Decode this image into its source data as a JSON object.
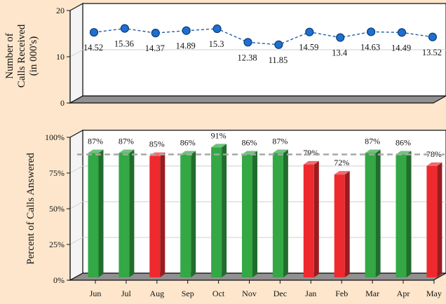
{
  "colors": {
    "background": "#fde6cc",
    "panel": "#ffffff",
    "line": "#1f5fa8",
    "marker": "#1e70d0",
    "bar_met": "#33a845",
    "bar_missed": "#ee2a2f",
    "target_line": "#a8a8a8"
  },
  "chart_data": [
    {
      "type": "line",
      "ylabel": [
        "Number of",
        "Calls Received",
        "(in 000's)"
      ],
      "categories": [
        "Jun",
        "Jul",
        "Aug",
        "Sep",
        "Oct",
        "Nov",
        "Dec",
        "Jan",
        "Feb",
        "Mar",
        "Apr",
        "May"
      ],
      "values": [
        14.52,
        15.36,
        14.37,
        14.89,
        15.3,
        12.38,
        11.85,
        14.59,
        13.4,
        14.63,
        14.49,
        13.52
      ],
      "value_labels": [
        "14.52",
        "15.36",
        "14.37",
        "14.89",
        "15.3",
        "12.38",
        "11.85",
        "14.59",
        "13.4",
        "14.63",
        "14.49",
        "13.52"
      ],
      "ylim": [
        0,
        20
      ],
      "yticks": [
        0,
        10,
        20
      ],
      "ytick_labels": [
        "0",
        "10",
        "20"
      ],
      "grid": true
    },
    {
      "type": "bar",
      "ylabel": "Percent of Calls Answered",
      "categories": [
        "Jun",
        "Jul",
        "Aug",
        "Sep",
        "Oct",
        "Nov",
        "Dec",
        "Jan",
        "Feb",
        "Mar",
        "Apr",
        "May"
      ],
      "values": [
        87,
        87,
        85,
        86,
        91,
        86,
        87,
        79,
        72,
        87,
        86,
        78
      ],
      "value_labels": [
        "87%",
        "87%",
        "85%",
        "86%",
        "91%",
        "86%",
        "87%",
        "79%",
        "72%",
        "87%",
        "86%",
        "78%"
      ],
      "target": 86,
      "ylim": [
        0,
        100
      ],
      "yticks": [
        0,
        25,
        50,
        75,
        100
      ],
      "ytick_labels": [
        "0%",
        "25%",
        "50%",
        "75%",
        "100%"
      ],
      "grid": true
    }
  ]
}
